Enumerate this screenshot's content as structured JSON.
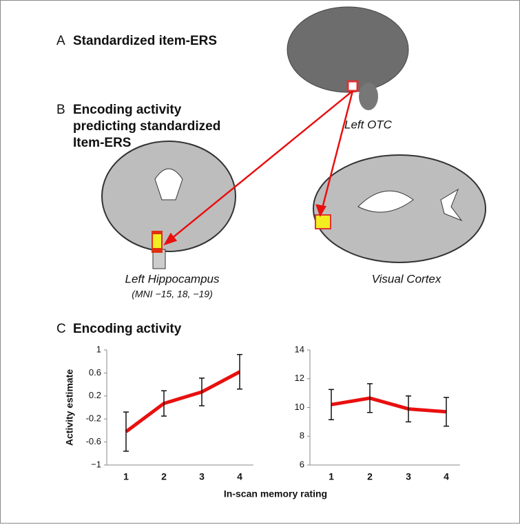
{
  "figure": {
    "panel_a": "A",
    "title_a": "Standardized item-ERS",
    "panel_b": "B",
    "title_b": [
      "Encoding activity",
      "predicting standardized",
      "Item-ERS"
    ],
    "label_otc": "Left OTC",
    "label_hippo": "Left Hippocampus",
    "label_mni": "(MNI −15, 18, −19)",
    "label_visual": "Visual Cortex",
    "panel_c": "C",
    "title_c": "Encoding activity",
    "xlabel": "In-scan memory rating"
  },
  "chart_data": [
    {
      "type": "line",
      "ylabel": "Activity estimate",
      "categories": [
        "1",
        "2",
        "3",
        "4"
      ],
      "values": [
        -0.42,
        0.07,
        0.27,
        0.62
      ],
      "errors": [
        0.34,
        0.22,
        0.24,
        0.3
      ],
      "color": "#e8100f",
      "ylim": [
        -1,
        1
      ],
      "yticks": [
        {
          "value": -1,
          "label": "−1"
        },
        -0.6,
        -0.2,
        0.2,
        0.6,
        1
      ]
    },
    {
      "type": "line",
      "categories": [
        "1",
        "2",
        "3",
        "4"
      ],
      "values": [
        10.2,
        10.65,
        9.9,
        9.7
      ],
      "errors": [
        1.05,
        1.0,
        0.9,
        1.0
      ],
      "color": "#e8100f",
      "ylim": [
        6,
        14
      ],
      "yticks": [
        6,
        8,
        10,
        12,
        14
      ]
    }
  ]
}
